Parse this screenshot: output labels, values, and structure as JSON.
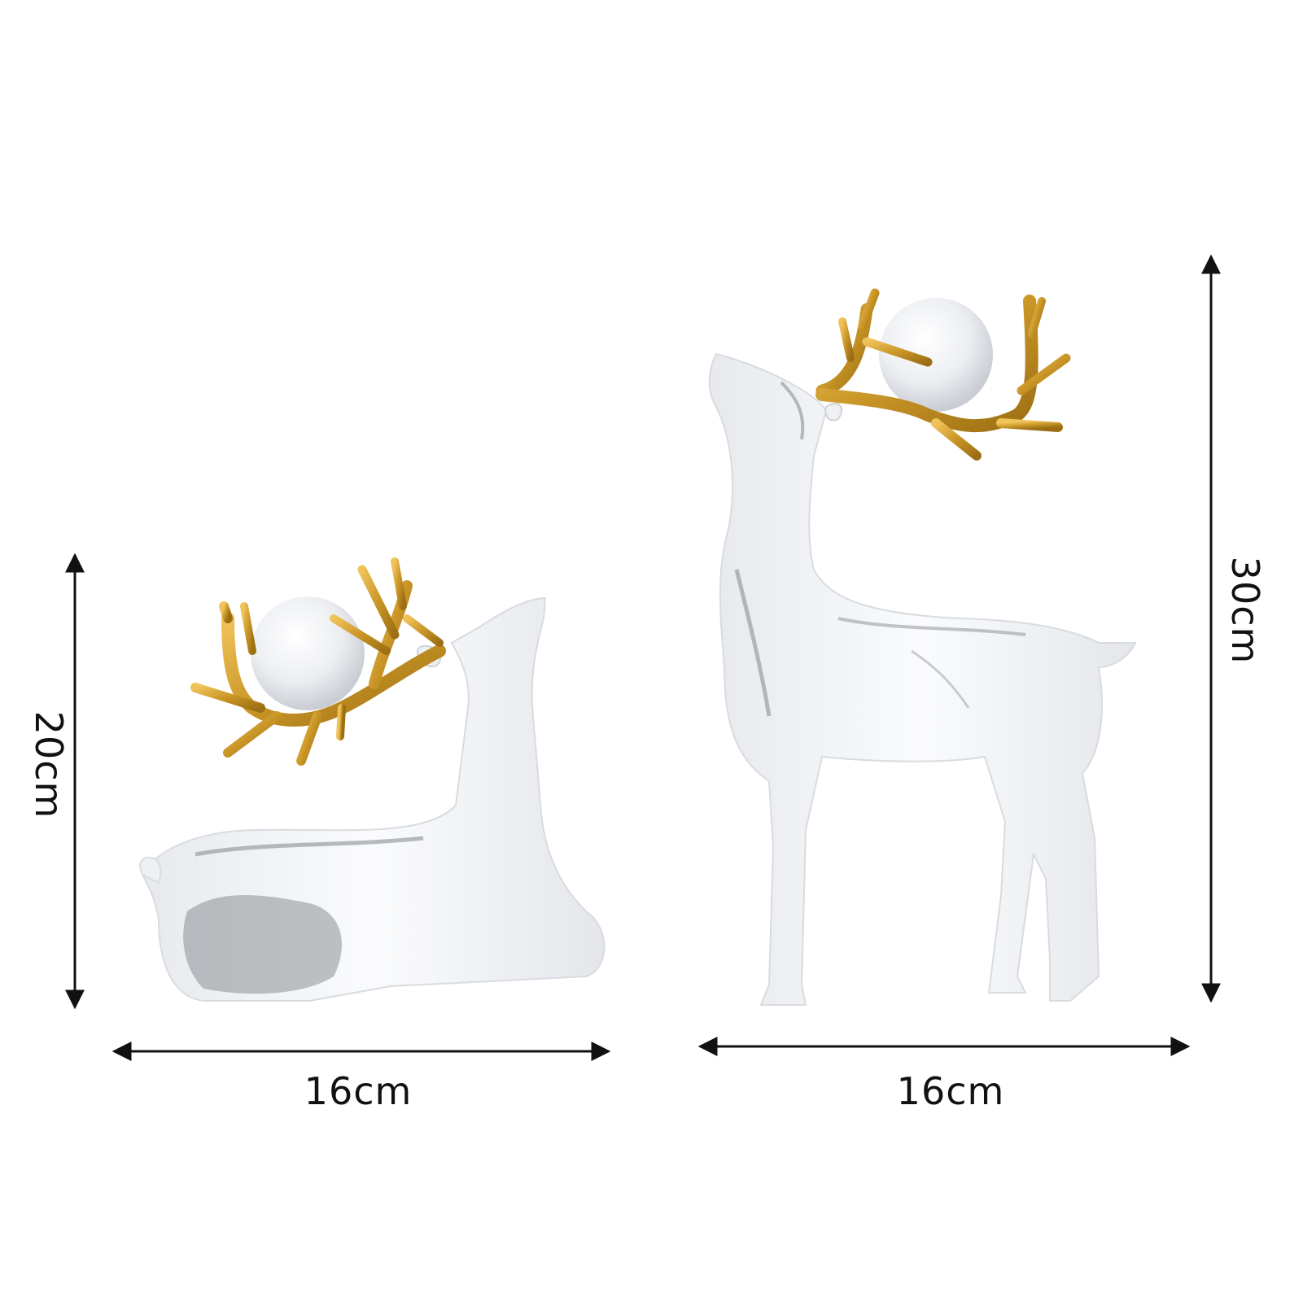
{
  "product": {
    "colors": {
      "body": "#f4f5f7",
      "marble": "#8d8f93",
      "gold": "#c99526",
      "gold_light": "#e8b84a",
      "orb": "#eef0f3",
      "arrow": "#111111"
    },
    "figures": [
      {
        "name": "sitting-deer",
        "width_label": "16cm",
        "height_label": "20cm"
      },
      {
        "name": "standing-deer",
        "width_label": "16cm",
        "height_label": "30cm"
      }
    ]
  }
}
